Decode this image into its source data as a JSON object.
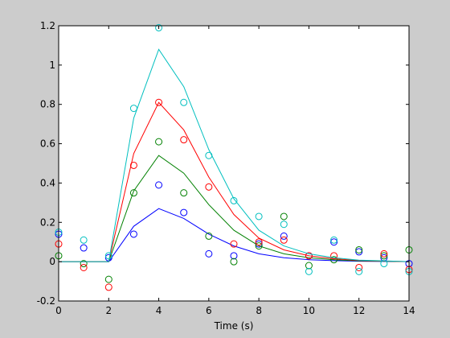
{
  "chart_data": {
    "type": "line",
    "title": "",
    "xlabel": "Time (s)",
    "ylabel": "",
    "xlim": [
      0,
      14
    ],
    "ylim": [
      -0.2,
      1.2
    ],
    "grid": false,
    "x_ticks": [
      0,
      2,
      4,
      6,
      8,
      10,
      12,
      14
    ],
    "y_ticks": [
      -0.2,
      0,
      0.2,
      0.4,
      0.6,
      0.8,
      1,
      1.2
    ],
    "x_tick_labels": [
      "0",
      "2",
      "4",
      "6",
      "8",
      "10",
      "12",
      "14"
    ],
    "y_tick_labels": [
      "-0.2",
      "0",
      "0.2",
      "0.4",
      "0.6",
      "0.8",
      "1",
      "1.2"
    ],
    "series": [
      {
        "color": "#0000ff",
        "line": {
          "x": [
            0,
            1,
            2,
            3,
            4,
            5,
            6,
            7,
            8,
            9,
            10,
            11,
            12,
            13,
            14
          ],
          "y": [
            0,
            0,
            0,
            0.18,
            0.27,
            0.22,
            0.14,
            0.08,
            0.04,
            0.02,
            0.01,
            0.005,
            0.002,
            0.001,
            0
          ]
        },
        "points": {
          "x": [
            0,
            1,
            2,
            3,
            4,
            5,
            6,
            7,
            8,
            9,
            10,
            11,
            12,
            13,
            14
          ],
          "y": [
            0.14,
            0.07,
            0.02,
            0.14,
            0.39,
            0.25,
            0.04,
            0.03,
            0.09,
            0.13,
            0.03,
            0.1,
            0.05,
            0.02,
            -0.01
          ]
        }
      },
      {
        "color": "#008000",
        "line": {
          "x": [
            0,
            1,
            2,
            3,
            4,
            5,
            6,
            7,
            8,
            9,
            10,
            11,
            12,
            13,
            14
          ],
          "y": [
            0,
            0,
            0,
            0.36,
            0.54,
            0.45,
            0.29,
            0.16,
            0.08,
            0.04,
            0.02,
            0.01,
            0.004,
            0.002,
            0
          ]
        },
        "points": {
          "x": [
            0,
            1,
            2,
            3,
            4,
            5,
            6,
            7,
            8,
            9,
            10,
            11,
            12,
            13,
            14
          ],
          "y": [
            0.03,
            -0.01,
            -0.09,
            0.35,
            0.61,
            0.35,
            0.13,
            0.0,
            0.08,
            0.23,
            -0.02,
            0.01,
            0.06,
            0.03,
            0.06
          ]
        }
      },
      {
        "color": "#ff0000",
        "line": {
          "x": [
            0,
            1,
            2,
            3,
            4,
            5,
            6,
            7,
            8,
            9,
            10,
            11,
            12,
            13,
            14
          ],
          "y": [
            0,
            0,
            0,
            0.55,
            0.81,
            0.67,
            0.43,
            0.24,
            0.12,
            0.06,
            0.03,
            0.015,
            0.006,
            0.003,
            0
          ]
        },
        "points": {
          "x": [
            0,
            1,
            2,
            3,
            4,
            5,
            6,
            7,
            8,
            9,
            10,
            11,
            12,
            13,
            14
          ],
          "y": [
            0.09,
            -0.03,
            -0.13,
            0.49,
            0.81,
            0.62,
            0.38,
            0.09,
            0.1,
            0.11,
            0.03,
            0.03,
            -0.03,
            0.04,
            -0.04
          ]
        }
      },
      {
        "color": "#00bfbf",
        "line": {
          "x": [
            0,
            1,
            2,
            3,
            4,
            5,
            6,
            7,
            8,
            9,
            10,
            11,
            12,
            13,
            14
          ],
          "y": [
            0,
            0,
            0,
            0.73,
            1.08,
            0.89,
            0.57,
            0.32,
            0.16,
            0.08,
            0.04,
            0.02,
            0.008,
            0.004,
            0
          ]
        },
        "points": {
          "x": [
            0,
            1,
            2,
            3,
            4,
            5,
            6,
            7,
            8,
            9,
            10,
            11,
            12,
            13,
            14
          ],
          "y": [
            0.15,
            0.11,
            0.03,
            0.78,
            1.19,
            0.81,
            0.54,
            0.31,
            0.23,
            0.19,
            -0.05,
            0.11,
            -0.05,
            -0.01,
            -0.05
          ]
        }
      }
    ]
  }
}
